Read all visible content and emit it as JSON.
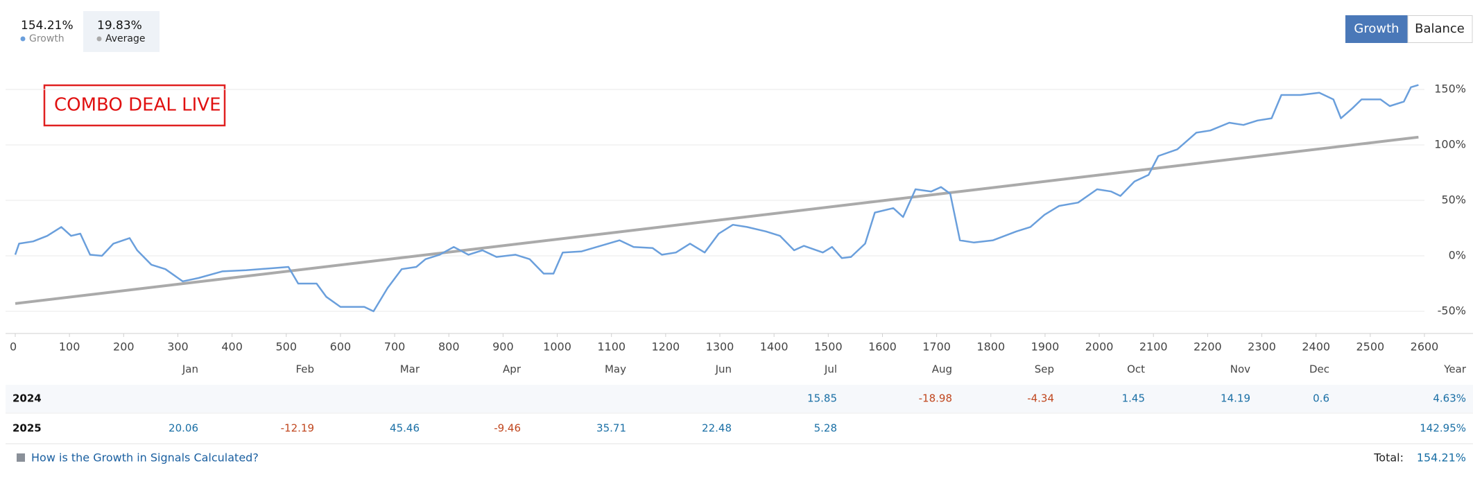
{
  "chart_data": {
    "type": "line",
    "annotation": "COMBO DEAL LIVE",
    "xlim": [
      0,
      2600
    ],
    "xticks": [
      0,
      100,
      200,
      300,
      400,
      500,
      600,
      700,
      800,
      900,
      1000,
      1100,
      1200,
      1300,
      1400,
      1500,
      1600,
      1700,
      1800,
      1900,
      2000,
      2100,
      2200,
      2300,
      2400,
      2500,
      2600
    ],
    "ylim": [
      -70,
      165
    ],
    "yticks": [
      {
        "value": -50,
        "label": "-50%"
      },
      {
        "value": 0,
        "label": "0%"
      },
      {
        "value": 50,
        "label": "50%"
      },
      {
        "value": 100,
        "label": "100%"
      },
      {
        "value": 150,
        "label": "150%"
      }
    ],
    "grid": true,
    "series": [
      {
        "name": "Growth",
        "summary": "154.21%",
        "color": "#6a9fdc",
        "x": [
          0,
          7,
          33,
          59,
          85,
          103,
          120,
          138,
          160,
          181,
          211,
          225,
          251,
          277,
          309,
          338,
          382,
          426,
          478,
          504,
          522,
          556,
          574,
          600,
          644,
          661,
          687,
          713,
          740,
          757,
          783,
          809,
          836,
          862,
          888,
          923,
          949,
          975,
          993,
          1010,
          1045,
          1080,
          1115,
          1141,
          1176,
          1193,
          1219,
          1245,
          1272,
          1298,
          1324,
          1350,
          1385,
          1411,
          1437,
          1455,
          1490,
          1507,
          1525,
          1542,
          1568,
          1586,
          1620,
          1638,
          1661,
          1690,
          1708,
          1725,
          1743,
          1769,
          1804,
          1847,
          1873,
          1899,
          1926,
          1961,
          1996,
          2022,
          2039,
          2065,
          2091,
          2109,
          2144,
          2179,
          2205,
          2240,
          2266,
          2292,
          2318,
          2336,
          2371,
          2406,
          2432,
          2446,
          2467,
          2484,
          2519,
          2536,
          2562,
          2575,
          2589
        ],
        "values": [
          1,
          11,
          13,
          18,
          26,
          18,
          20,
          1,
          0,
          11,
          16,
          5,
          -8,
          -12,
          -23,
          -20,
          -14,
          -13,
          -11,
          -10,
          -25,
          -25,
          -37,
          -46,
          -46,
          -50,
          -29,
          -12,
          -10,
          -3,
          1,
          8,
          1,
          5,
          -1,
          1,
          -3,
          -16,
          -16,
          3,
          4,
          9,
          14,
          8,
          7,
          1,
          3,
          11,
          3,
          20,
          28,
          26,
          22,
          18,
          5,
          9,
          3,
          8,
          -2,
          -1,
          11,
          39,
          43,
          35,
          60,
          58,
          62,
          56,
          14,
          12,
          14,
          22,
          26,
          37,
          45,
          48,
          60,
          58,
          54,
          67,
          73,
          90,
          96,
          111,
          113,
          120,
          118,
          122,
          124,
          145,
          145,
          147,
          141,
          124,
          133,
          141,
          141,
          135,
          139,
          152,
          154
        ]
      },
      {
        "name": "Average",
        "summary": "19.83%",
        "color": "#aaaaaa",
        "x": [
          0,
          2589
        ],
        "values": [
          -43,
          107
        ]
      }
    ]
  },
  "buttons": [
    "Growth",
    "Balance"
  ],
  "table": {
    "columns": [
      "Jan",
      "Feb",
      "Mar",
      "Apr",
      "May",
      "Jun",
      "Jul",
      "Aug",
      "Sep",
      "Oct",
      "Nov",
      "Dec",
      "Year"
    ],
    "rows": [
      {
        "year": "2024",
        "cells": [
          null,
          null,
          null,
          null,
          null,
          null,
          "15.85",
          "-18.98",
          "-4.34",
          "1.45",
          "14.19",
          "0.6",
          "4.63%"
        ]
      },
      {
        "year": "2025",
        "cells": [
          "20.06",
          "-12.19",
          "45.46",
          "-9.46",
          "35.71",
          "22.48",
          "5.28",
          null,
          null,
          null,
          null,
          null,
          "142.95%"
        ]
      }
    ]
  },
  "footer": {
    "link": "How is the Growth in Signals Calculated?",
    "total_label": "Total:",
    "total_value": "154.21%"
  }
}
